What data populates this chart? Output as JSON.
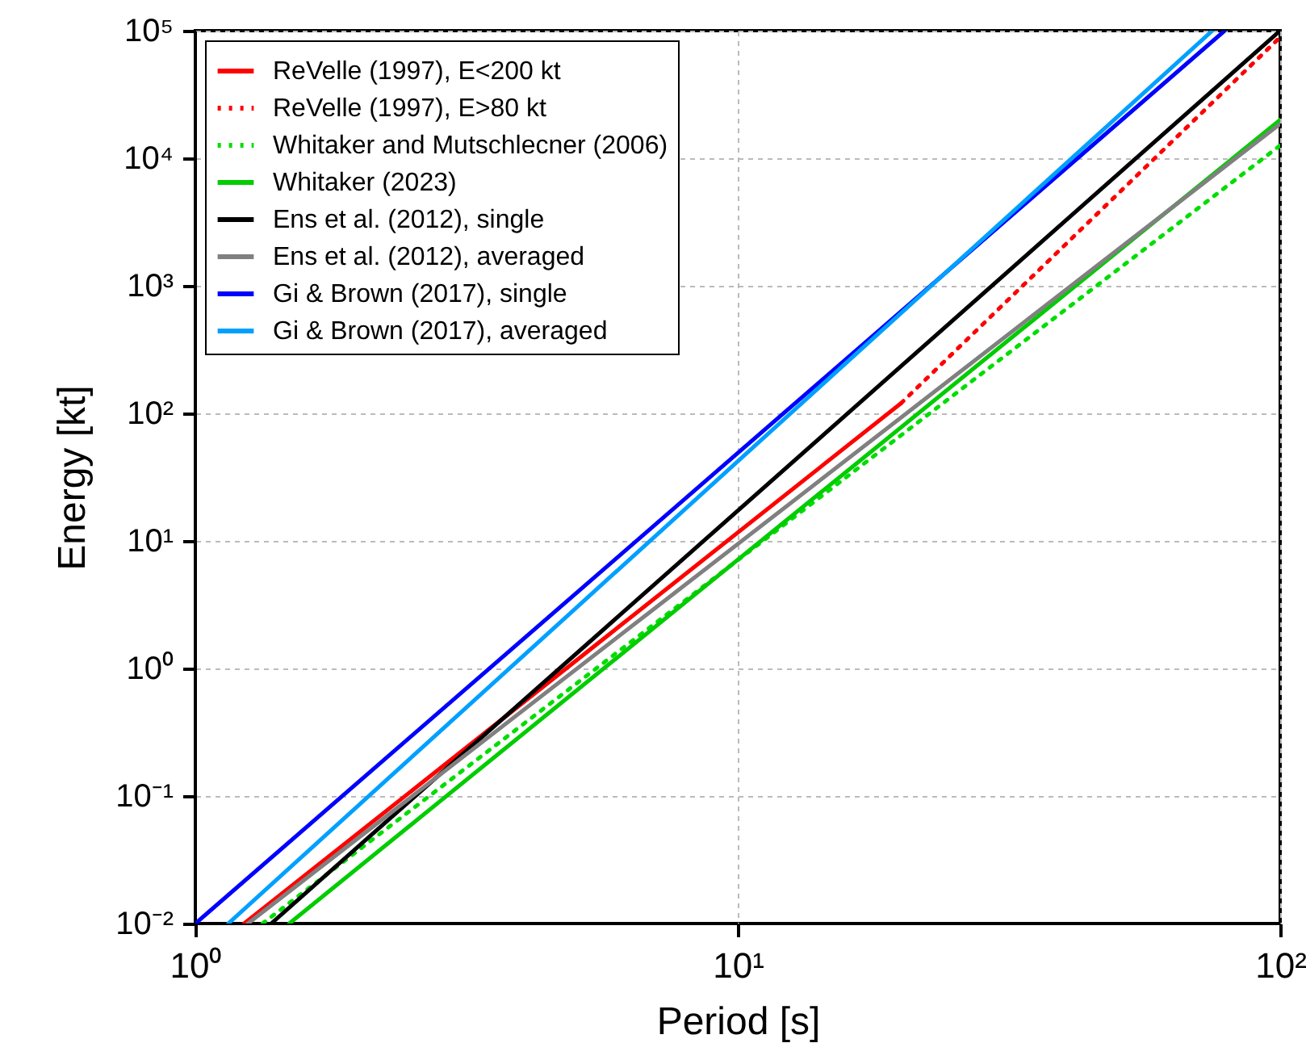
{
  "chart_data": {
    "type": "line",
    "xlabel": "Period [s]",
    "ylabel": "Energy [kt]",
    "log": "xy",
    "grid": true,
    "legend": "top left",
    "marker": "none",
    "xlim": [
      1,
      100
    ],
    "xticks": [
      {
        "value": 1,
        "label": "10⁰"
      },
      {
        "value": 10,
        "label": "10¹"
      },
      {
        "value": 100,
        "label": "10²"
      }
    ],
    "ylim": [
      0.01,
      100000
    ],
    "yticks": [
      {
        "value": 0.01,
        "label": "10⁻²"
      },
      {
        "value": 0.1,
        "label": "10⁻¹"
      },
      {
        "value": 1,
        "label": "10⁰"
      },
      {
        "value": 10,
        "label": "10¹"
      },
      {
        "value": 100,
        "label": "10²"
      },
      {
        "value": 1000,
        "label": "10³"
      },
      {
        "value": 10000,
        "label": "10⁴"
      },
      {
        "value": 100000,
        "label": "10⁵"
      }
    ],
    "series": [
      {
        "name": "ReVelle (1997), E<200 kt",
        "color": "#ff0000",
        "line_style": "solid",
        "x": [
          1.23,
          20
        ],
        "values": [
          0.01,
          120
        ]
      },
      {
        "name": "ReVelle (1997), E>80 kt",
        "color": "#ff0000",
        "line_style": "dotted",
        "x": [
          20,
          100
        ],
        "values": [
          120,
          89000
        ]
      },
      {
        "name": "Whitaker and Mutschlecner (2006)",
        "color": "#00dd00",
        "line_style": "dotted",
        "x": [
          1.33,
          100
        ],
        "values": [
          0.01,
          12600
        ]
      },
      {
        "name": "Whitaker (2023)",
        "color": "#00cc00",
        "line_style": "solid",
        "x": [
          1.49,
          100
        ],
        "values": [
          0.01,
          20000
        ]
      },
      {
        "name": "Ens et al. (2012), single",
        "color": "#000000",
        "line_style": "solid",
        "x": [
          1.38,
          100
        ],
        "values": [
          0.01,
          100000
        ]
      },
      {
        "name": "Ens et al. (2012), averaged",
        "color": "#808080",
        "line_style": "solid",
        "x": [
          1.25,
          100
        ],
        "values": [
          0.01,
          18600
        ]
      },
      {
        "name": "Gi & Brown (2017), single",
        "color": "#0000ff",
        "line_style": "solid",
        "x": [
          1,
          79
        ],
        "values": [
          0.01,
          100000
        ]
      },
      {
        "name": "Gi & Brown (2017), averaged",
        "color": "#00a0ff",
        "line_style": "solid",
        "x": [
          1.15,
          75
        ],
        "values": [
          0.01,
          100000
        ]
      }
    ]
  }
}
